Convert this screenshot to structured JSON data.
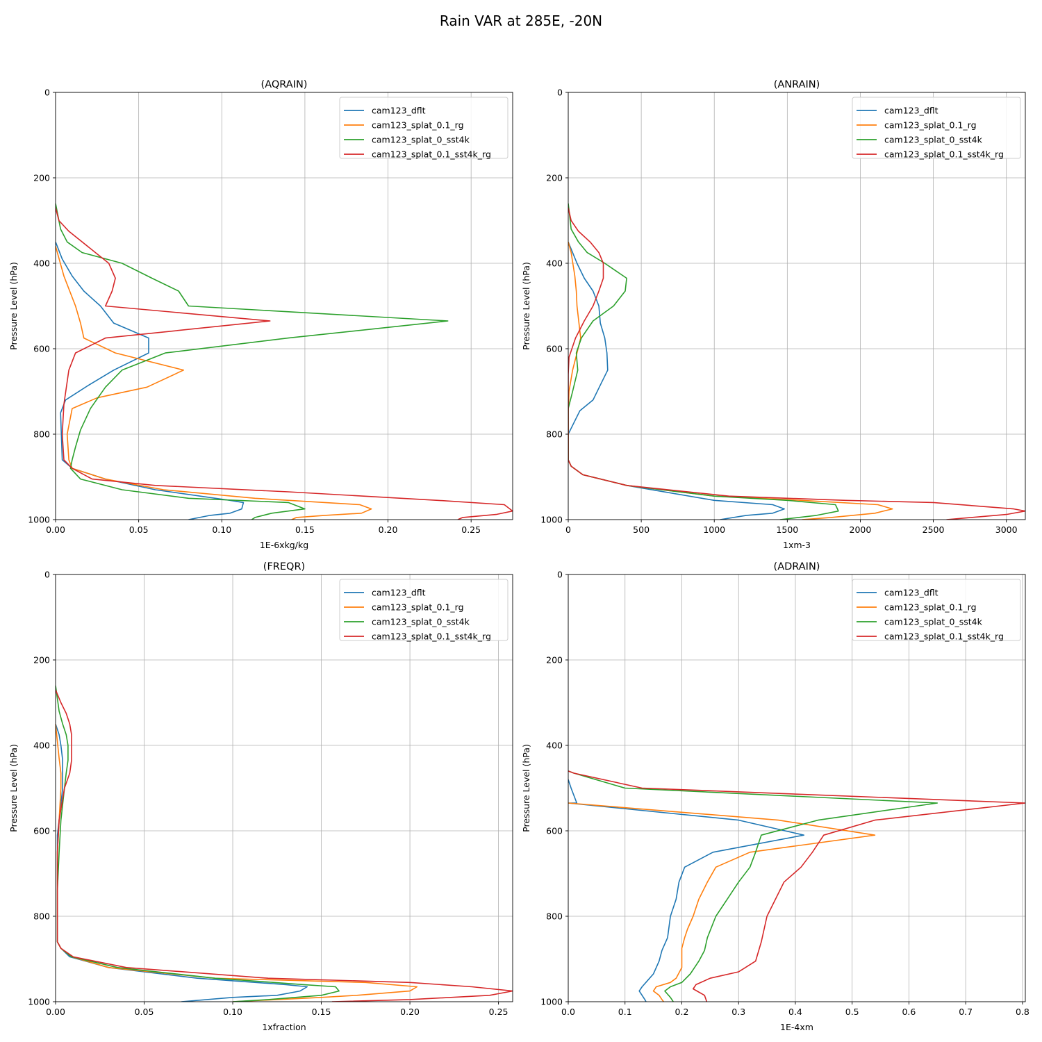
{
  "figure_title": "Rain VAR at 285E, -20N",
  "series_names": [
    "cam123_dflt",
    "cam123_splat_0.1_rg",
    "cam123_splat_0_sst4k",
    "cam123_splat_0.1_sst4k_rg"
  ],
  "series_colors": [
    "#1f77b4",
    "#ff7f0e",
    "#2ca02c",
    "#d62728"
  ],
  "chart_data": [
    {
      "type": "line",
      "title": "(AQRAIN)",
      "xlabel": "1E-6xkg/kg",
      "ylabel": "Pressure Level (hPa)",
      "xlim": [
        0,
        0.275
      ],
      "ylim": [
        1000,
        0
      ],
      "y_inverted": true,
      "grid": true,
      "legend": "upper right",
      "xticks": [
        "0.00",
        "0.05",
        "0.10",
        "0.15",
        "0.20",
        "0.25"
      ],
      "xtick_values": [
        0,
        0.05,
        0.1,
        0.15,
        0.2,
        0.25
      ],
      "yticks": [
        "0",
        "200",
        "400",
        "600",
        "800",
        "1000"
      ],
      "ytick_values": [
        0,
        200,
        400,
        600,
        800,
        1000
      ],
      "series": [
        {
          "name": "cam123_dflt",
          "x": [
            0,
            0.004,
            0.01,
            0.017,
            0.027,
            0.035,
            0.056,
            0.056,
            0.035,
            0.02,
            0.006,
            0.003,
            0.004,
            0.01,
            0.03,
            0.06,
            0.105,
            0.113,
            0.112,
            0.105,
            0.093,
            0.08
          ],
          "y": [
            350,
            390,
            430,
            465,
            500,
            540,
            575,
            610,
            650,
            685,
            720,
            750,
            860,
            880,
            905,
            930,
            955,
            960,
            975,
            985,
            990,
            1000
          ]
        },
        {
          "name": "cam123_splat_0.1_rg",
          "x": [
            0,
            0.005,
            0.012,
            0.015,
            0.017,
            0.036,
            0.077,
            0.055,
            0.025,
            0.01,
            0.007,
            0.008,
            0.01,
            0.03,
            0.065,
            0.12,
            0.183,
            0.19,
            0.184,
            0.162,
            0.145,
            0.142
          ],
          "y": [
            360,
            430,
            500,
            540,
            575,
            610,
            650,
            690,
            715,
            740,
            800,
            860,
            880,
            905,
            930,
            950,
            965,
            975,
            985,
            990,
            995,
            1000
          ]
        },
        {
          "name": "cam123_splat_0_sst4k",
          "x": [
            0,
            0.003,
            0.007,
            0.016,
            0.04,
            0.058,
            0.074,
            0.08,
            0.236,
            0.14,
            0.066,
            0.04,
            0.03,
            0.021,
            0.015,
            0.012,
            0.01,
            0.009,
            0.015,
            0.04,
            0.08,
            0.14,
            0.15,
            0.13,
            0.12,
            0.118
          ],
          "y": [
            260,
            320,
            350,
            375,
            400,
            435,
            465,
            500,
            535,
            575,
            610,
            650,
            690,
            740,
            790,
            830,
            860,
            880,
            905,
            930,
            950,
            960,
            975,
            985,
            995,
            1000
          ]
        },
        {
          "name": "cam123_splat_0.1_sst4k_rg",
          "x": [
            0,
            0.002,
            0.008,
            0.024,
            0.032,
            0.036,
            0.034,
            0.03,
            0.129,
            0.03,
            0.012,
            0.008,
            0.005,
            0.004,
            0.005,
            0.01,
            0.022,
            0.06,
            0.14,
            0.23,
            0.27,
            0.275,
            0.265,
            0.245,
            0.242
          ],
          "y": [
            270,
            300,
            325,
            375,
            400,
            435,
            465,
            500,
            535,
            575,
            610,
            650,
            730,
            800,
            860,
            880,
            905,
            920,
            935,
            955,
            965,
            980,
            988,
            995,
            1000
          ]
        }
      ]
    },
    {
      "type": "line",
      "title": "(ANRAIN)",
      "xlabel": "1xm-3",
      "ylabel": "Pressure Level (hPa)",
      "xlim": [
        0,
        3130
      ],
      "ylim": [
        1000,
        0
      ],
      "y_inverted": true,
      "grid": true,
      "legend": "upper right",
      "xticks": [
        "0",
        "500",
        "1000",
        "1500",
        "2000",
        "2500",
        "3000"
      ],
      "xtick_values": [
        0,
        500,
        1000,
        1500,
        2000,
        2500,
        3000
      ],
      "yticks": [
        "0",
        "200",
        "400",
        "600",
        "800",
        "1000"
      ],
      "ytick_values": [
        0,
        200,
        400,
        600,
        800,
        1000
      ],
      "series": [
        {
          "name": "cam123_dflt",
          "x": [
            0,
            30,
            60,
            110,
            170,
            210,
            220,
            250,
            265,
            270,
            220,
            170,
            80,
            0,
            0,
            20,
            100,
            400,
            1000,
            1400,
            1480,
            1400,
            1220,
            1040
          ],
          "y": [
            350,
            375,
            400,
            435,
            465,
            500,
            540,
            575,
            610,
            650,
            685,
            720,
            745,
            800,
            860,
            875,
            895,
            920,
            955,
            965,
            975,
            985,
            990,
            1000
          ]
        },
        {
          "name": "cam123_splat_0.1_rg",
          "x": [
            0,
            20,
            45,
            55,
            60,
            85,
            60,
            30,
            5,
            0,
            0,
            20,
            100,
            400,
            1000,
            1600,
            2120,
            2220,
            2100,
            1800,
            1600
          ],
          "y": [
            350,
            375,
            430,
            465,
            500,
            575,
            610,
            650,
            700,
            750,
            860,
            875,
            895,
            920,
            945,
            955,
            965,
            975,
            985,
            995,
            1000
          ]
        },
        {
          "name": "cam123_splat_0_sst4k",
          "x": [
            0,
            20,
            70,
            130,
            250,
            400,
            390,
            310,
            170,
            90,
            55,
            65,
            30,
            0,
            0,
            20,
            100,
            400,
            1000,
            1500,
            1830,
            1850,
            1700,
            1450
          ],
          "y": [
            260,
            320,
            350,
            375,
            400,
            435,
            465,
            500,
            535,
            575,
            610,
            650,
            700,
            740,
            860,
            875,
            895,
            920,
            945,
            955,
            965,
            980,
            990,
            1000
          ]
        },
        {
          "name": "cam123_splat_0.1_sst4k_rg",
          "x": [
            0,
            20,
            70,
            150,
            210,
            240,
            240,
            210,
            170,
            110,
            50,
            5,
            0,
            0,
            20,
            100,
            400,
            1100,
            1900,
            2500,
            3050,
            3130,
            3000,
            2590
          ],
          "y": [
            270,
            300,
            325,
            350,
            375,
            400,
            435,
            465,
            500,
            535,
            575,
            620,
            660,
            860,
            875,
            895,
            920,
            945,
            955,
            960,
            975,
            980,
            988,
            1000
          ]
        }
      ]
    },
    {
      "type": "line",
      "title": "(FREQR)",
      "xlabel": "1xfraction",
      "ylabel": "Pressure Level (hPa)",
      "xlim": [
        0,
        0.258
      ],
      "ylim": [
        1000,
        0
      ],
      "y_inverted": true,
      "grid": true,
      "legend": "upper right",
      "xticks": [
        "0.00",
        "0.05",
        "0.10",
        "0.15",
        "0.20",
        "0.25"
      ],
      "xtick_values": [
        0,
        0.05,
        0.1,
        0.15,
        0.2,
        0.25
      ],
      "yticks": [
        "0",
        "200",
        "400",
        "600",
        "800",
        "1000"
      ],
      "ytick_values": [
        0,
        200,
        400,
        600,
        800,
        1000
      ],
      "series": [
        {
          "name": "cam123_dflt",
          "x": [
            0,
            0.002,
            0.003,
            0.004,
            0.004,
            0.004,
            0.002,
            0.001,
            0.001,
            0.001,
            0.001,
            0.003,
            0.008,
            0.03,
            0.08,
            0.13,
            0.142,
            0.138,
            0.125,
            0.1,
            0.071
          ],
          "y": [
            350,
            375,
            400,
            435,
            465,
            500,
            575,
            610,
            650,
            750,
            860,
            875,
            895,
            920,
            945,
            960,
            965,
            975,
            985,
            990,
            1000
          ]
        },
        {
          "name": "cam123_splat_0.1_rg",
          "x": [
            0,
            0.002,
            0.003,
            0.003,
            0.002,
            0.001,
            0.001,
            0.001,
            0.003,
            0.009,
            0.03,
            0.09,
            0.175,
            0.204,
            0.2,
            0.17,
            0.15,
            0.1
          ],
          "y": [
            350,
            430,
            465,
            500,
            575,
            650,
            750,
            860,
            875,
            895,
            920,
            945,
            955,
            965,
            975,
            985,
            990,
            1000
          ]
        },
        {
          "name": "cam123_splat_0_sst4k",
          "x": [
            0,
            0.002,
            0.004,
            0.006,
            0.007,
            0.007,
            0.006,
            0.005,
            0.003,
            0.002,
            0.001,
            0.001,
            0.003,
            0.009,
            0.035,
            0.09,
            0.14,
            0.158,
            0.16,
            0.15,
            0.12,
            0.1
          ],
          "y": [
            260,
            320,
            350,
            375,
            400,
            435,
            465,
            500,
            575,
            650,
            740,
            860,
            875,
            895,
            920,
            945,
            960,
            965,
            975,
            985,
            995,
            1000
          ]
        },
        {
          "name": "cam123_splat_0.1_sst4k_rg",
          "x": [
            0,
            0.003,
            0.006,
            0.008,
            0.009,
            0.009,
            0.008,
            0.005,
            0.002,
            0.001,
            0.001,
            0.003,
            0.01,
            0.04,
            0.12,
            0.2,
            0.235,
            0.258,
            0.245,
            0.2,
            0.156
          ],
          "y": [
            270,
            300,
            325,
            350,
            375,
            435,
            465,
            500,
            575,
            650,
            860,
            875,
            895,
            920,
            945,
            955,
            965,
            975,
            985,
            995,
            1000
          ]
        }
      ]
    },
    {
      "type": "line",
      "title": "(ADRAIN)",
      "xlabel": "1E-4xm",
      "ylabel": "Pressure Level (hPa)",
      "xlim": [
        0,
        0.805
      ],
      "ylim": [
        1000,
        0
      ],
      "y_inverted": true,
      "grid": true,
      "legend": "upper right",
      "xticks": [
        "0.0",
        "0.1",
        "0.2",
        "0.3",
        "0.4",
        "0.5",
        "0.6",
        "0.7",
        "0.8"
      ],
      "xtick_values": [
        0,
        0.1,
        0.2,
        0.3,
        0.4,
        0.5,
        0.6,
        0.7,
        0.8
      ],
      "yticks": [
        "0",
        "200",
        "400",
        "600",
        "800",
        "1000"
      ],
      "ytick_values": [
        0,
        200,
        400,
        600,
        800,
        1000
      ],
      "series": [
        {
          "name": "cam123_dflt",
          "x": [
            0,
            0.005,
            0.015,
            0.0,
            0.3,
            0.415,
            0.255,
            0.205,
            0.195,
            0.19,
            0.18,
            0.175,
            0.165,
            0.16,
            0.15,
            0.14,
            0.13,
            0.125,
            0.13,
            0.135,
            0.137
          ],
          "y": [
            480,
            500,
            535,
            535,
            575,
            610,
            650,
            685,
            720,
            760,
            800,
            850,
            880,
            905,
            935,
            950,
            965,
            975,
            985,
            995,
            1000
          ]
        },
        {
          "name": "cam123_splat_0.1_rg",
          "x": [
            0,
            0.37,
            0.54,
            0.32,
            0.26,
            0.245,
            0.23,
            0.22,
            0.21,
            0.205,
            0.2,
            0.2,
            0.2,
            0.19,
            0.18,
            0.155,
            0.15,
            0.16,
            0.165,
            0.168
          ],
          "y": [
            535,
            575,
            610,
            650,
            685,
            720,
            760,
            800,
            830,
            850,
            875,
            900,
            920,
            945,
            955,
            965,
            975,
            985,
            995,
            1000
          ]
        },
        {
          "name": "cam123_splat_0_sst4k",
          "x": [
            0,
            0.01,
            0.1,
            0.65,
            0.44,
            0.34,
            0.33,
            0.32,
            0.3,
            0.28,
            0.26,
            0.245,
            0.24,
            0.23,
            0.215,
            0.2,
            0.18,
            0.17,
            0.18,
            0.185
          ],
          "y": [
            460,
            465,
            500,
            535,
            575,
            610,
            650,
            685,
            720,
            760,
            800,
            850,
            880,
            905,
            935,
            955,
            965,
            975,
            990,
            1000
          ]
        },
        {
          "name": "cam123_splat_0.1_sst4k_rg",
          "x": [
            0,
            0.01,
            0.13,
            0.805,
            0.54,
            0.45,
            0.43,
            0.41,
            0.38,
            0.35,
            0.34,
            0.33,
            0.3,
            0.25,
            0.225,
            0.22,
            0.24,
            0.244
          ],
          "y": [
            460,
            465,
            500,
            535,
            575,
            610,
            650,
            685,
            720,
            800,
            860,
            905,
            930,
            945,
            960,
            970,
            985,
            1000
          ]
        }
      ]
    }
  ]
}
